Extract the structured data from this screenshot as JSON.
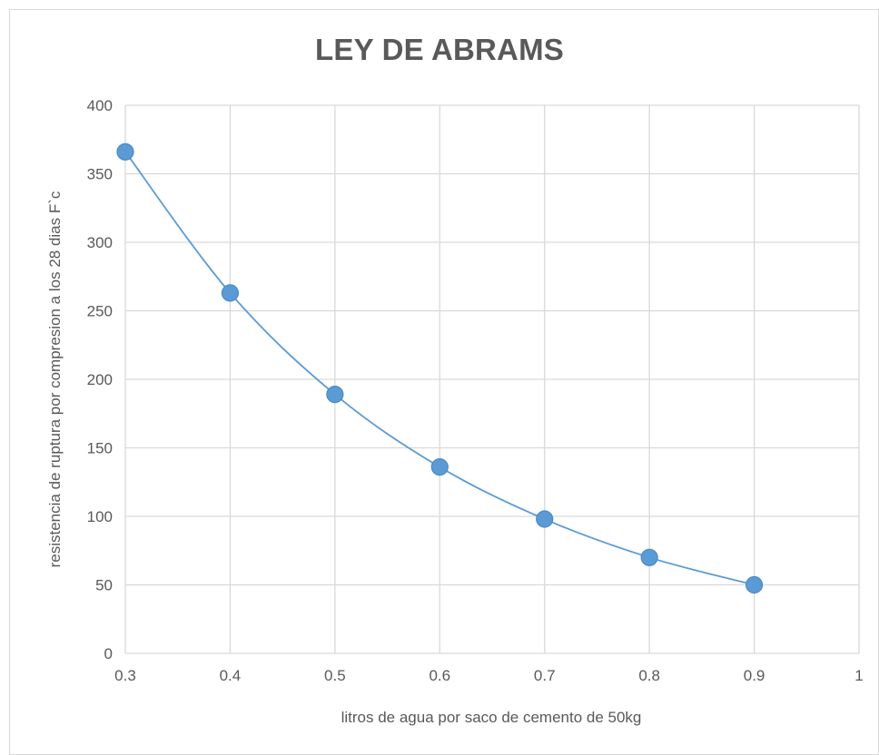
{
  "chart_data": {
    "type": "scatter",
    "title": "LEY DE ABRAMS",
    "xlabel": "litros de agua por saco de cemento de 50kg",
    "ylabel": "resistencia de ruptura por compresion a los 28 dias F`c",
    "xlim": [
      0.3,
      1.0
    ],
    "ylim": [
      0,
      400
    ],
    "x_ticks": [
      "0.3",
      "0.4",
      "0.5",
      "0.6",
      "0.7",
      "0.8",
      "0.9",
      "1"
    ],
    "y_ticks": [
      "0",
      "50",
      "100",
      "150",
      "200",
      "250",
      "300",
      "350",
      "400"
    ],
    "grid": true,
    "legend": "none",
    "smooth_line": true,
    "series": [
      {
        "x": [
          0.3,
          0.4,
          0.5,
          0.6,
          0.7,
          0.8,
          0.9
        ],
        "y": [
          366,
          263,
          189,
          136,
          98,
          70,
          50
        ]
      }
    ],
    "colors": {
      "marker": "#5b9bd5",
      "line": "#5b9bd5",
      "grid": "#d9d9d9",
      "text": "#595959"
    }
  }
}
